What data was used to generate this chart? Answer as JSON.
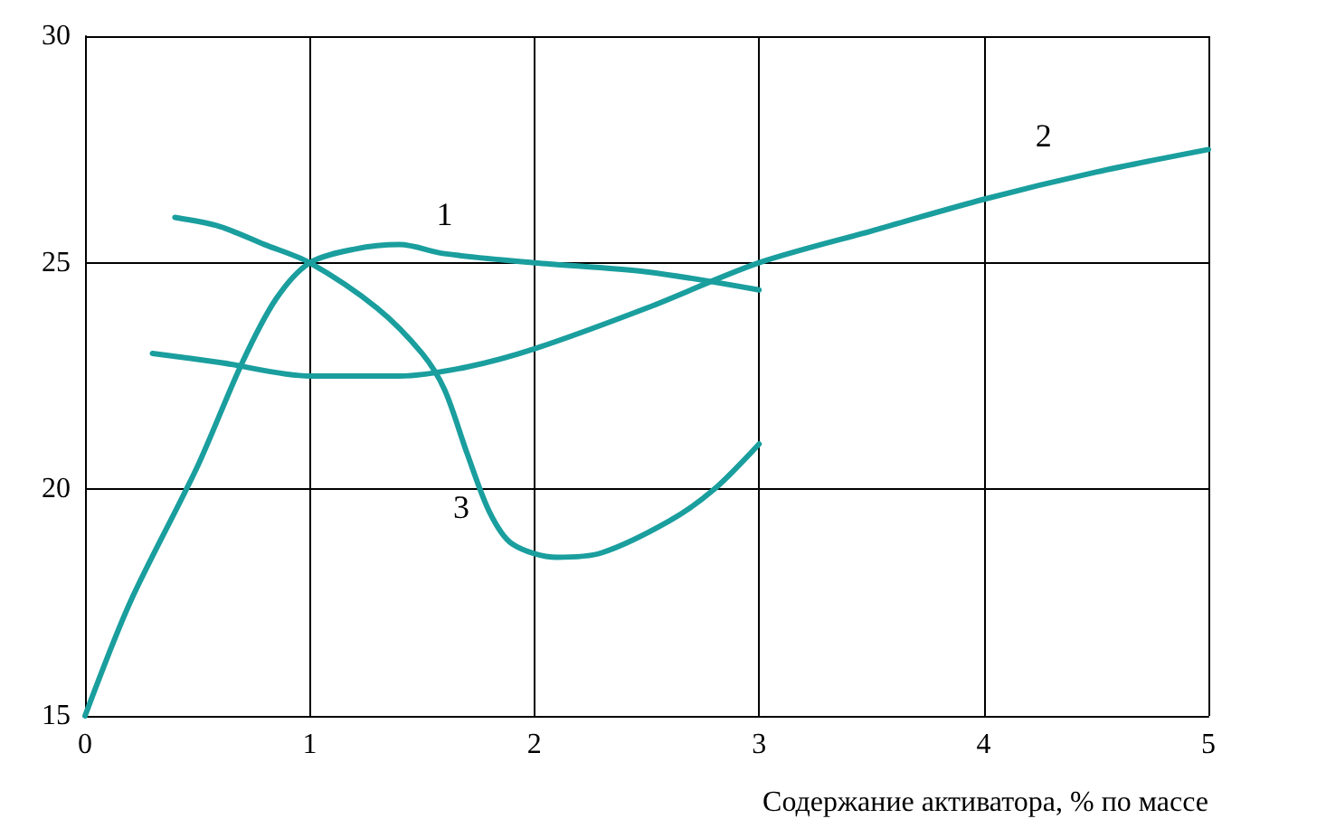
{
  "chart_data": {
    "type": "line",
    "xlabel": "Содержание активатора, % по массе",
    "xlim": [
      0,
      5
    ],
    "xticks": [
      0,
      1,
      2,
      3,
      4,
      5
    ],
    "ylim": [
      15,
      30
    ],
    "yticks": [
      15,
      20,
      25,
      30
    ],
    "grid": true,
    "marker": "none",
    "line_style": "solid",
    "series": [
      {
        "name": "1",
        "color": "#1a9e9e",
        "x": [
          0,
          0.2,
          0.5,
          0.7,
          0.85,
          1,
          1.2,
          1.4,
          1.6,
          2,
          2.5,
          3
        ],
        "values": [
          15,
          17.5,
          20.5,
          22.8,
          24.2,
          25,
          25.3,
          25.4,
          25.2,
          25,
          24.8,
          24.4
        ]
      },
      {
        "name": "2",
        "color": "#1a9e9e",
        "x": [
          0.3,
          0.6,
          1,
          1.4,
          1.7,
          2,
          2.5,
          3,
          3.5,
          4,
          4.5,
          5
        ],
        "values": [
          23,
          22.8,
          22.5,
          22.5,
          22.7,
          23.1,
          24,
          25,
          25.7,
          26.4,
          27,
          27.5
        ]
      },
      {
        "name": "3",
        "color": "#1a9e9e",
        "x": [
          0.4,
          0.6,
          0.8,
          1,
          1.3,
          1.5,
          1.6,
          1.7,
          1.8,
          1.9,
          2.1,
          2.3,
          2.6,
          2.8,
          3
        ],
        "values": [
          26,
          25.8,
          25.4,
          25,
          24,
          23,
          22.2,
          20.8,
          19.5,
          18.8,
          18.5,
          18.6,
          19.3,
          20,
          21
        ]
      }
    ]
  }
}
